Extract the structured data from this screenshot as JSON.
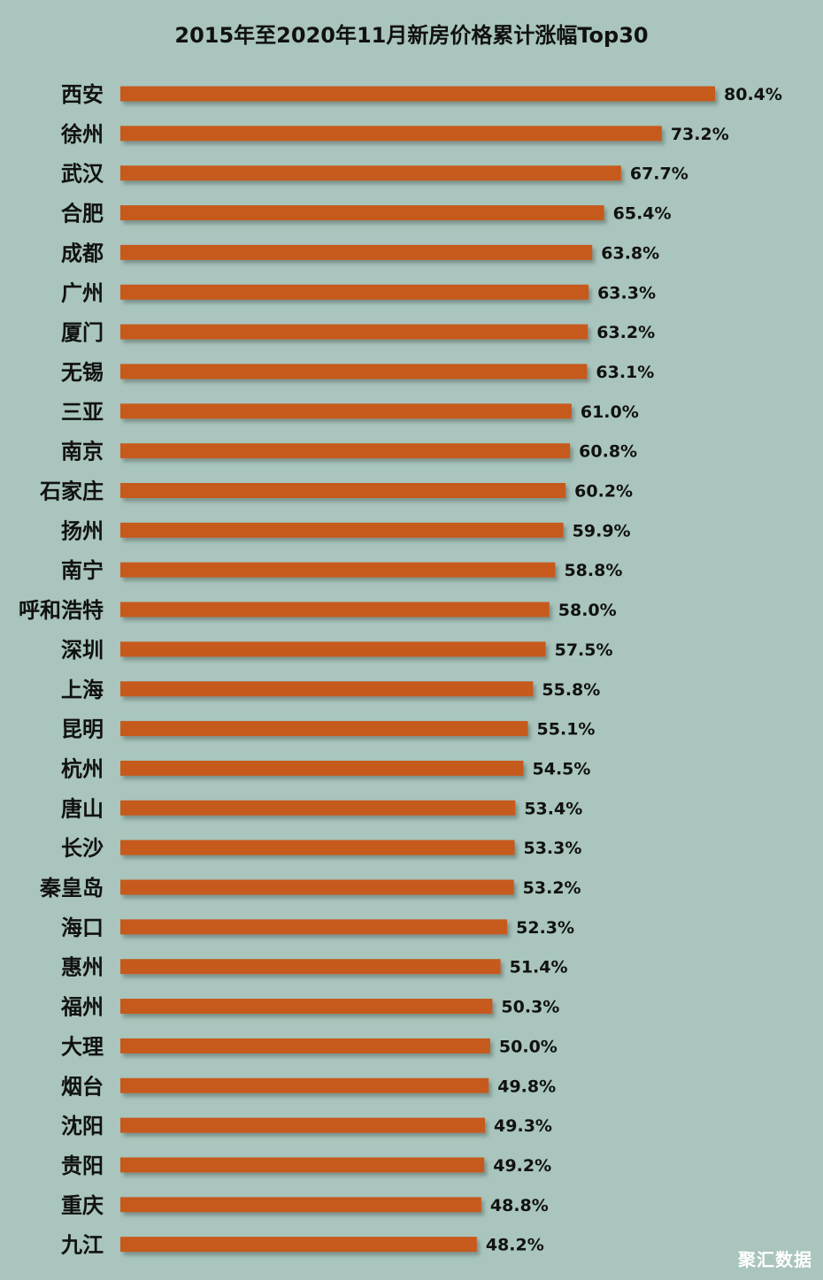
{
  "watermark": "聚汇数据",
  "colors": {
    "background": "#a9c5bd",
    "bar": "#c65a1e",
    "bar_shadow": "#6e7f79",
    "text": "#111111"
  },
  "chart_data": {
    "type": "bar",
    "orientation": "horizontal",
    "title": "2015年至2020年11月新房价格累计涨幅Top30",
    "xlabel": "",
    "ylabel": "",
    "grid": false,
    "legend": "none",
    "xlim": [
      0,
      85
    ],
    "categories": [
      "西安",
      "徐州",
      "武汉",
      "合肥",
      "成都",
      "广州",
      "厦门",
      "无锡",
      "三亚",
      "南京",
      "石家庄",
      "扬州",
      "南宁",
      "呼和浩特",
      "深圳",
      "上海",
      "昆明",
      "杭州",
      "唐山",
      "长沙",
      "秦皇岛",
      "海口",
      "惠州",
      "福州",
      "大理",
      "烟台",
      "沈阳",
      "贵阳",
      "重庆",
      "九江"
    ],
    "values": [
      80.4,
      73.2,
      67.7,
      65.4,
      63.8,
      63.3,
      63.2,
      63.1,
      61.0,
      60.8,
      60.2,
      59.9,
      58.8,
      58.0,
      57.5,
      55.8,
      55.1,
      54.5,
      53.4,
      53.3,
      53.2,
      52.3,
      51.4,
      50.3,
      50.0,
      49.8,
      49.3,
      49.2,
      48.8,
      48.2
    ],
    "data_labels": [
      "80.4%",
      "73.2%",
      "67.7%",
      "65.4%",
      "63.8%",
      "63.3%",
      "63.2%",
      "63.1%",
      "61.0%",
      "60.8%",
      "60.2%",
      "59.9%",
      "58.8%",
      "58.0%",
      "57.5%",
      "55.8%",
      "55.1%",
      "54.5%",
      "53.4%",
      "53.3%",
      "53.2%",
      "52.3%",
      "51.4%",
      "50.3%",
      "50.0%",
      "49.8%",
      "49.3%",
      "49.2%",
      "48.8%",
      "48.2%"
    ]
  }
}
